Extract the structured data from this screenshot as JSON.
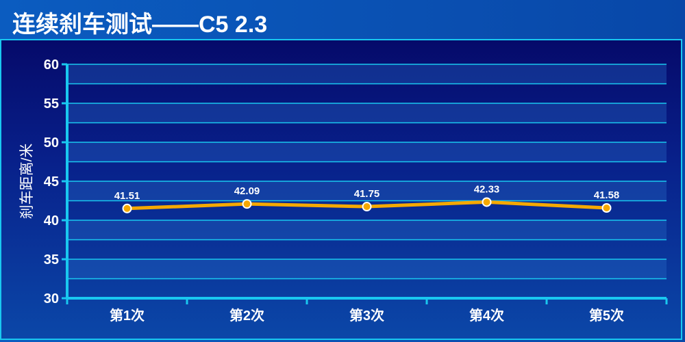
{
  "title": "连续刹车测试——C5 2.3",
  "chart_data": {
    "type": "line",
    "title": "连续刹车测试——C5 2.3",
    "xlabel": "",
    "ylabel": "刹车距离/米",
    "categories": [
      "第1次",
      "第2次",
      "第3次",
      "第4次",
      "第5次"
    ],
    "series": [
      {
        "values": [
          41.51,
          42.09,
          41.75,
          42.33,
          41.58
        ]
      }
    ],
    "data_labels": [
      "41.51",
      "42.09",
      "41.75",
      "42.33",
      "41.58"
    ],
    "ylim": [
      30,
      60
    ],
    "yticks": [
      30,
      35,
      40,
      45,
      50,
      55,
      60
    ],
    "grid": true,
    "legend": "none",
    "colors": {
      "line": "#f5a800",
      "marker": "#f5a800",
      "grid": "#19c8f0",
      "axis": "#19c8f0",
      "text": "#ffffff"
    }
  }
}
